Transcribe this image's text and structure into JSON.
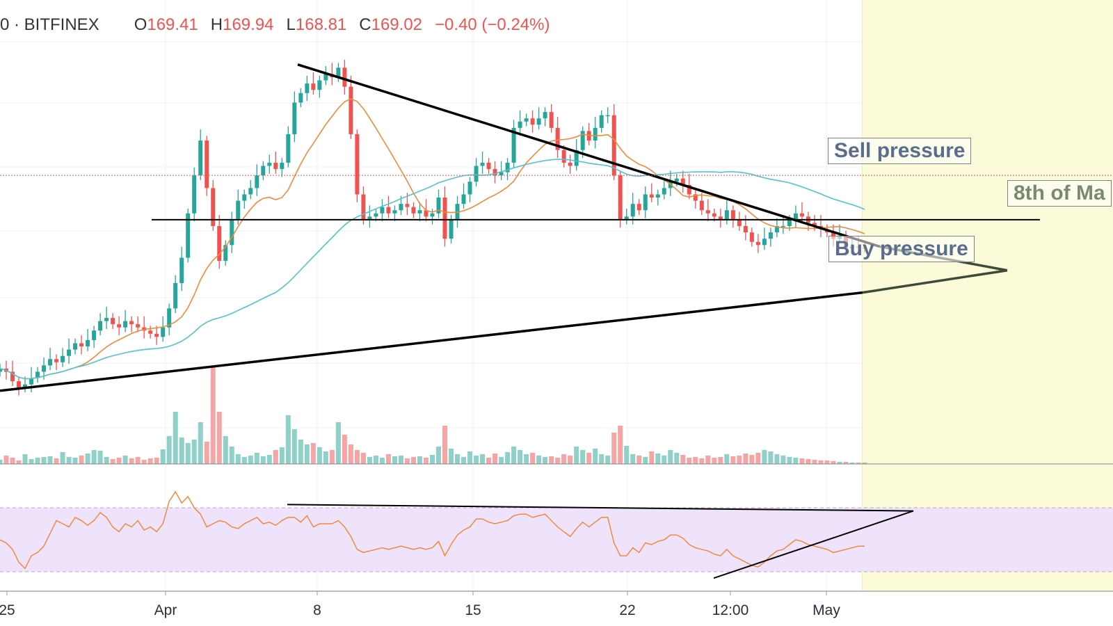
{
  "header": {
    "symbol": "0 · BITFINEX",
    "open_label": "O",
    "open": "169.41",
    "high_label": "H",
    "high": "169.94",
    "low_label": "L",
    "low": "168.81",
    "close_label": "C",
    "close": "169.02",
    "change": "−0.40 (−0.24%)"
  },
  "annotations": {
    "sell": "Sell pressure",
    "buy": "Buy pressure",
    "target": "8th of Ma"
  },
  "colors": {
    "up": "#26a69a",
    "down": "#ef5350",
    "up_vol": "#8fd1c8",
    "down_vol": "#f5a5a3",
    "ma_orange": "#f08a3a",
    "ma_cyan": "#4fc3cf",
    "rsi_band": "#efe3fb",
    "rsi_line": "#f08a3a",
    "highlight": "#fbfbd9"
  },
  "chart_data": [
    {
      "type": "candlestick",
      "name": "price",
      "x_tick_labels": [
        "25",
        "Apr",
        "8",
        "15",
        "22",
        "12:00",
        "May"
      ],
      "close_series": [
        131,
        130,
        127,
        125,
        126,
        128,
        130,
        132,
        134,
        133,
        135,
        137,
        139,
        138,
        140,
        143,
        146,
        147,
        145,
        144,
        146,
        145,
        144,
        143,
        142,
        141,
        144,
        150,
        158,
        166,
        180,
        192,
        203,
        188,
        176,
        165,
        170,
        178,
        184,
        186,
        188,
        192,
        195,
        196,
        194,
        196,
        205,
        215,
        218,
        221,
        219,
        222,
        224,
        223,
        226,
        220,
        205,
        186,
        178,
        179,
        180,
        182,
        180,
        181,
        183,
        182,
        180,
        181,
        179,
        180,
        185,
        172,
        178,
        183,
        186,
        190,
        195,
        196,
        194,
        192,
        193,
        196,
        207,
        209,
        210,
        208,
        210,
        212,
        207,
        200,
        196,
        195,
        200,
        206,
        203,
        207,
        211,
        211,
        192,
        178,
        179,
        183,
        181,
        186,
        185,
        186,
        188,
        190,
        191,
        189,
        186,
        184,
        181,
        180,
        179,
        178,
        181,
        178,
        176,
        174,
        171,
        170,
        172,
        174,
        176,
        176,
        178,
        180,
        179,
        177,
        176,
        175,
        174,
        172,
        173,
        169,
        169.5,
        169.2,
        169.0
      ],
      "close_range": [
        125,
        226
      ],
      "moving_averages": [
        "orange",
        "cyan"
      ],
      "levels": [
        {
          "kind": "descending trendline",
          "from": 227,
          "to": 170
        },
        {
          "kind": "ascending trendline",
          "from": 124,
          "to": 171
        },
        {
          "kind": "horizontal support",
          "value": 178
        }
      ]
    },
    {
      "type": "bar",
      "name": "volume",
      "values": [
        6,
        12,
        9,
        5,
        14,
        7,
        9,
        10,
        11,
        8,
        17,
        10,
        9,
        12,
        15,
        20,
        19,
        10,
        7,
        9,
        12,
        8,
        10,
        6,
        8,
        9,
        21,
        40,
        75,
        38,
        30,
        35,
        60,
        32,
        140,
        75,
        40,
        25,
        14,
        10,
        12,
        16,
        11,
        13,
        20,
        24,
        70,
        50,
        35,
        28,
        30,
        24,
        18,
        20,
        60,
        42,
        28,
        20,
        16,
        10,
        12,
        9,
        14,
        11,
        12,
        8,
        10,
        11,
        9,
        13,
        25,
        55,
        22,
        14,
        10,
        18,
        12,
        14,
        9,
        15,
        10,
        17,
        25,
        20,
        14,
        16,
        12,
        10,
        11,
        9,
        14,
        12,
        25,
        20,
        16,
        22,
        14,
        12,
        45,
        55,
        26,
        14,
        12,
        10,
        18,
        15,
        12,
        20,
        16,
        13,
        9,
        10,
        8,
        12,
        9,
        10,
        14,
        11,
        12,
        15,
        13,
        16,
        20,
        18,
        14,
        12,
        10,
        9,
        8,
        7,
        6,
        5,
        5,
        4,
        3,
        3,
        2,
        2,
        2
      ]
    },
    {
      "type": "line",
      "name": "rsi",
      "values": [
        50,
        48,
        44,
        36,
        32,
        40,
        42,
        46,
        54,
        62,
        60,
        58,
        64,
        62,
        59,
        62,
        67,
        64,
        58,
        55,
        60,
        58,
        62,
        56,
        58,
        55,
        60,
        74,
        80,
        73,
        77,
        70,
        66,
        58,
        60,
        62,
        61,
        58,
        57,
        60,
        62,
        64,
        60,
        61,
        59,
        62,
        64,
        64,
        61,
        65,
        58,
        60,
        60,
        60,
        62,
        58,
        52,
        44,
        42,
        43,
        44,
        45,
        44,
        45,
        46,
        45,
        44,
        45,
        44,
        45,
        49,
        40,
        47,
        53,
        56,
        58,
        63,
        63,
        61,
        60,
        61,
        62,
        65,
        66,
        66,
        64,
        65,
        66,
        62,
        58,
        55,
        52,
        57,
        61,
        58,
        61,
        64,
        64,
        48,
        40,
        40,
        45,
        42,
        48,
        47,
        49,
        50,
        53,
        53,
        51,
        47,
        45,
        44,
        43,
        41,
        40,
        44,
        40,
        38,
        36,
        34,
        33,
        36,
        40,
        43,
        44,
        47,
        50,
        49,
        47,
        46,
        45,
        44,
        42,
        43,
        44,
        45,
        46,
        46
      ]
    }
  ]
}
